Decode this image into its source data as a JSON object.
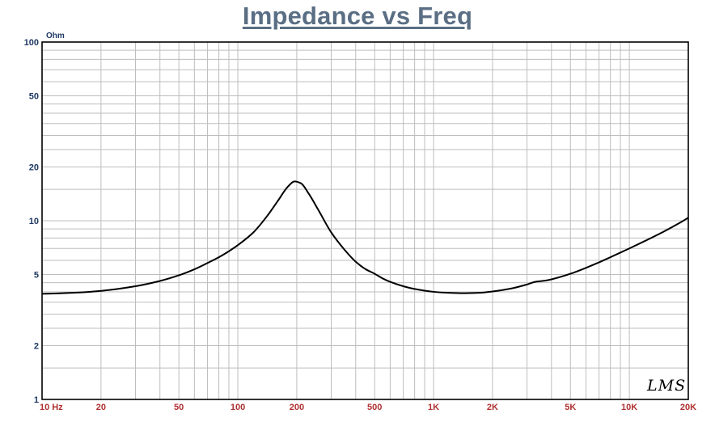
{
  "chart_data": {
    "type": "line",
    "title": "Impedance vs Freq",
    "ylabel_unit": "Ohm",
    "x_scale": "log",
    "y_scale": "log",
    "xlim": [
      10,
      20000
    ],
    "ylim": [
      1,
      100
    ],
    "x_tick_values": [
      10,
      20,
      50,
      100,
      200,
      500,
      1000,
      2000,
      5000,
      10000,
      20000
    ],
    "x_tick_labels": [
      "10  Hz",
      "20",
      "50",
      "100",
      "200",
      "500",
      "1K",
      "2K",
      "5K",
      "10K",
      "20K"
    ],
    "y_tick_values": [
      1,
      2,
      5,
      10,
      20,
      50,
      100
    ],
    "y_tick_labels": [
      "1",
      "2",
      "5",
      "10",
      "20",
      "50",
      "100"
    ],
    "grid": true,
    "line_color": "#000000",
    "grid_color": "#bdbdbd",
    "series": [
      {
        "x": [
          10,
          12,
          15,
          20,
          30,
          40,
          50,
          60,
          70,
          80,
          90,
          100,
          120,
          140,
          160,
          180,
          195,
          210,
          230,
          260,
          300,
          350,
          400,
          450,
          500,
          550,
          600,
          700,
          800,
          1000,
          1200,
          1400,
          1700,
          2000,
          2500,
          3000,
          3300,
          3700,
          4000,
          5000,
          6000,
          7000,
          8000,
          10000,
          12000,
          15000,
          18000,
          20000
        ],
        "y": [
          3.9,
          3.92,
          3.96,
          4.05,
          4.3,
          4.6,
          4.95,
          5.35,
          5.8,
          6.25,
          6.75,
          7.3,
          8.6,
          10.5,
          12.9,
          15.5,
          16.6,
          16.2,
          14.2,
          11.3,
          8.6,
          6.9,
          5.9,
          5.35,
          5.05,
          4.75,
          4.55,
          4.3,
          4.15,
          4.0,
          3.95,
          3.93,
          3.95,
          4.02,
          4.18,
          4.4,
          4.55,
          4.62,
          4.7,
          5.05,
          5.45,
          5.85,
          6.25,
          7.0,
          7.7,
          8.7,
          9.7,
          10.4
        ]
      }
    ]
  },
  "logo": {
    "text": "LMS"
  }
}
